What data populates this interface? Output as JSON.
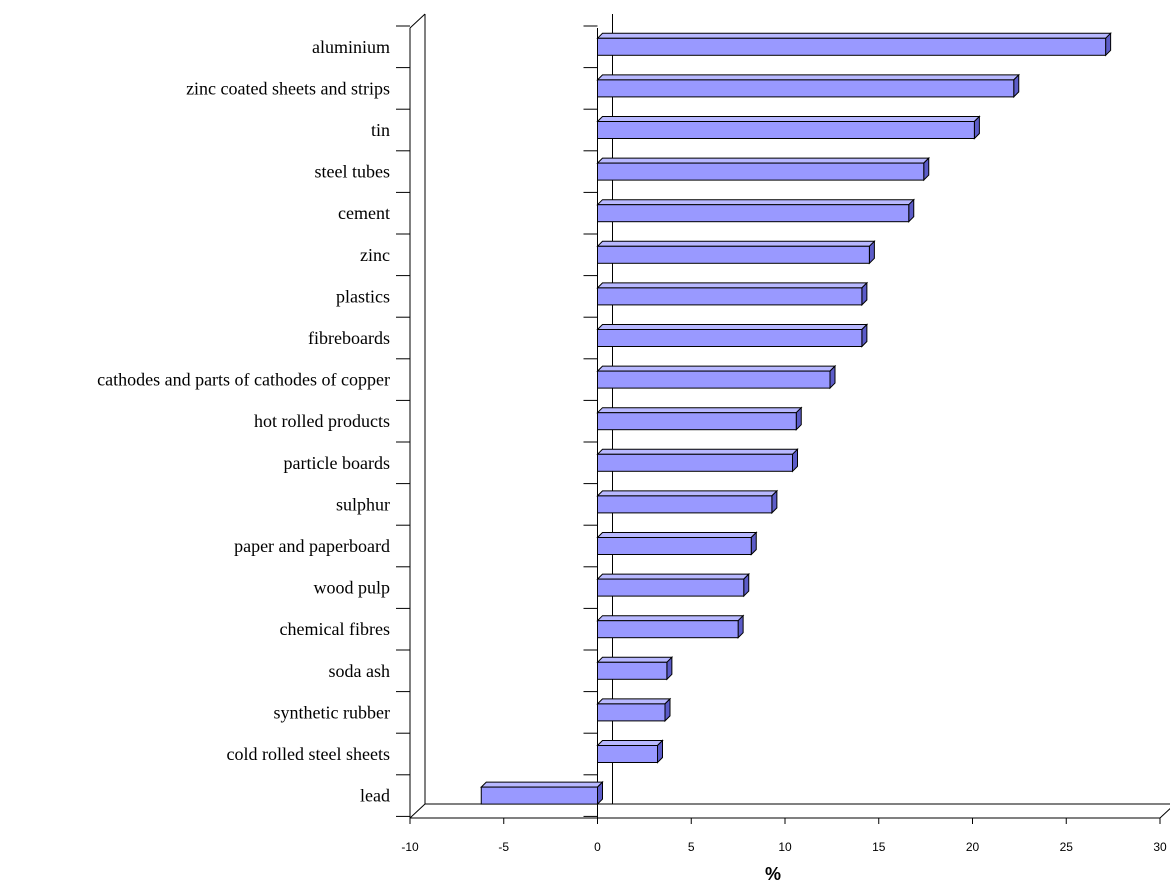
{
  "chart_data": {
    "type": "bar",
    "orientation": "horizontal",
    "style": "3d",
    "categories": [
      "aluminium",
      "zinc coated sheets and strips",
      "tin",
      "steel tubes",
      "cement",
      "zinc",
      "plastics",
      "fibreboards",
      "cathodes and parts of cathodes of copper",
      "hot rolled products",
      "particle boards",
      "sulphur",
      "paper and paperboard",
      "wood pulp",
      "chemical fibres",
      "soda ash",
      "synthetic rubber",
      "cold rolled steel sheets",
      "lead"
    ],
    "values": [
      27.1,
      22.2,
      20.1,
      17.4,
      16.6,
      14.5,
      14.1,
      14.1,
      12.4,
      10.6,
      10.4,
      9.3,
      8.2,
      7.8,
      7.5,
      3.7,
      3.6,
      3.2,
      -6.2
    ],
    "xlabel": "%",
    "xlim": [
      -10,
      30
    ],
    "xticks": [
      -10,
      -5,
      0,
      5,
      10,
      15,
      20,
      25,
      30
    ],
    "grid": false,
    "legend": "none",
    "bar_color": "#9999ff",
    "bar_top_color": "#b8b8ff",
    "bar_side_color": "#5c5cc8"
  }
}
